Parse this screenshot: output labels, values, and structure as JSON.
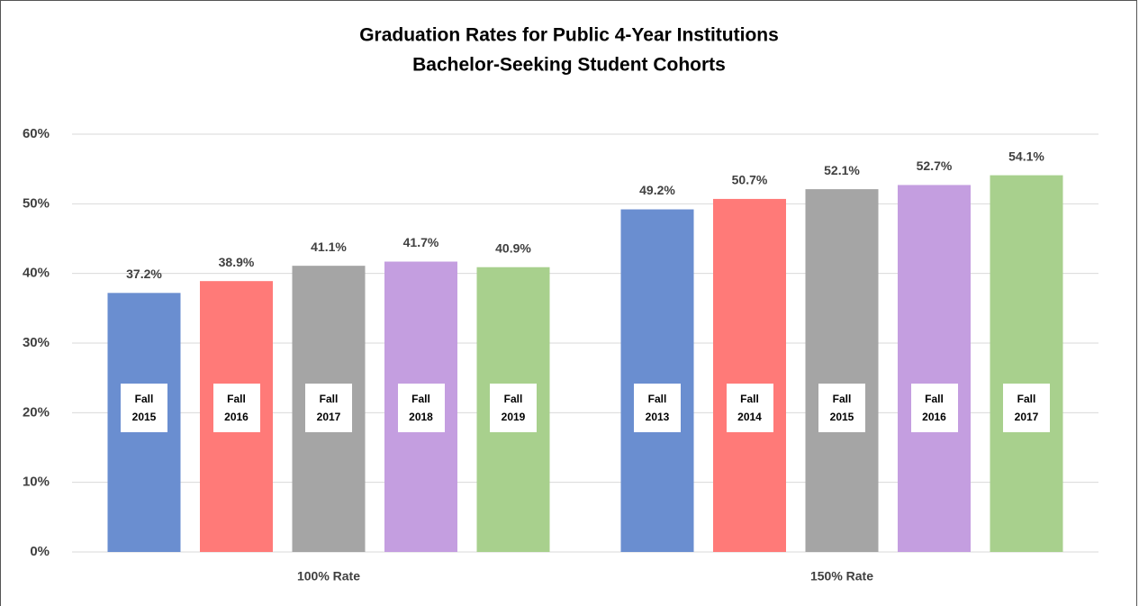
{
  "chart_data": {
    "type": "bar",
    "title": "Graduation Rates for Public 4-Year Institutions",
    "subtitle": "Bachelor-Seeking Student Cohorts",
    "categories": [
      "100% Rate",
      "150% Rate"
    ],
    "series": [
      {
        "color": "#6a8ed0",
        "bar_labels": [
          "Fall 2015",
          "Fall 2013"
        ],
        "values": [
          37.2,
          49.2
        ],
        "value_labels": [
          "37.2%",
          "49.2%"
        ]
      },
      {
        "color": "#ff7a78",
        "bar_labels": [
          "Fall 2016",
          "Fall 2014"
        ],
        "values": [
          38.9,
          50.7
        ],
        "value_labels": [
          "38.9%",
          "50.7%"
        ]
      },
      {
        "color": "#a5a5a5",
        "bar_labels": [
          "Fall 2017",
          "Fall 2015"
        ],
        "values": [
          41.1,
          52.1
        ],
        "value_labels": [
          "41.1%",
          "52.1%"
        ]
      },
      {
        "color": "#c49ee0",
        "bar_labels": [
          "Fall 2018",
          "Fall 2016"
        ],
        "values": [
          41.7,
          52.7
        ],
        "value_labels": [
          "41.7%",
          "52.7%"
        ]
      },
      {
        "color": "#a8d08d",
        "bar_labels": [
          "Fall 2019",
          "Fall 2017"
        ],
        "values": [
          40.9,
          54.1
        ],
        "value_labels": [
          "40.9%",
          "54.1%"
        ]
      }
    ],
    "ylim": [
      0,
      60
    ],
    "yticks": [
      {
        "value": 0,
        "label": "0%"
      },
      {
        "value": 10,
        "label": "10%"
      },
      {
        "value": 20,
        "label": "20%"
      },
      {
        "value": 30,
        "label": "30%"
      },
      {
        "value": 40,
        "label": "40%"
      },
      {
        "value": 50,
        "label": "50%"
      },
      {
        "value": 60,
        "label": "60%"
      }
    ],
    "grid": true
  }
}
